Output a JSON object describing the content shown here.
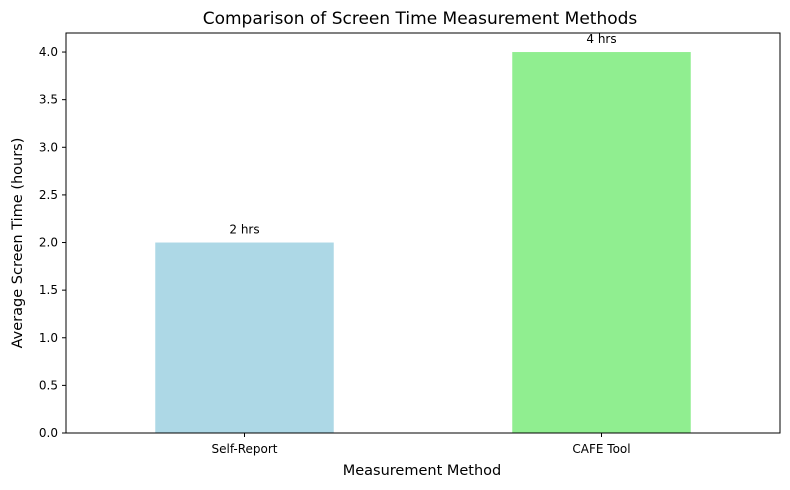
{
  "chart_data": {
    "type": "bar",
    "title": "Comparison of Screen Time Measurement Methods",
    "xlabel": "Measurement Method",
    "ylabel": "Average Screen Time (hours)",
    "categories": [
      "Self-Report",
      "CAFE Tool"
    ],
    "values": [
      2,
      4
    ],
    "data_labels": [
      "2 hrs",
      "4 hrs"
    ],
    "colors": [
      "#add8e6",
      "#90ee90"
    ],
    "ylim": [
      0,
      4.2
    ],
    "yticks": [
      "0.0",
      "0.5",
      "1.0",
      "1.5",
      "2.0",
      "2.5",
      "3.0",
      "3.5",
      "4.0"
    ],
    "grid": false,
    "legend": "none"
  }
}
